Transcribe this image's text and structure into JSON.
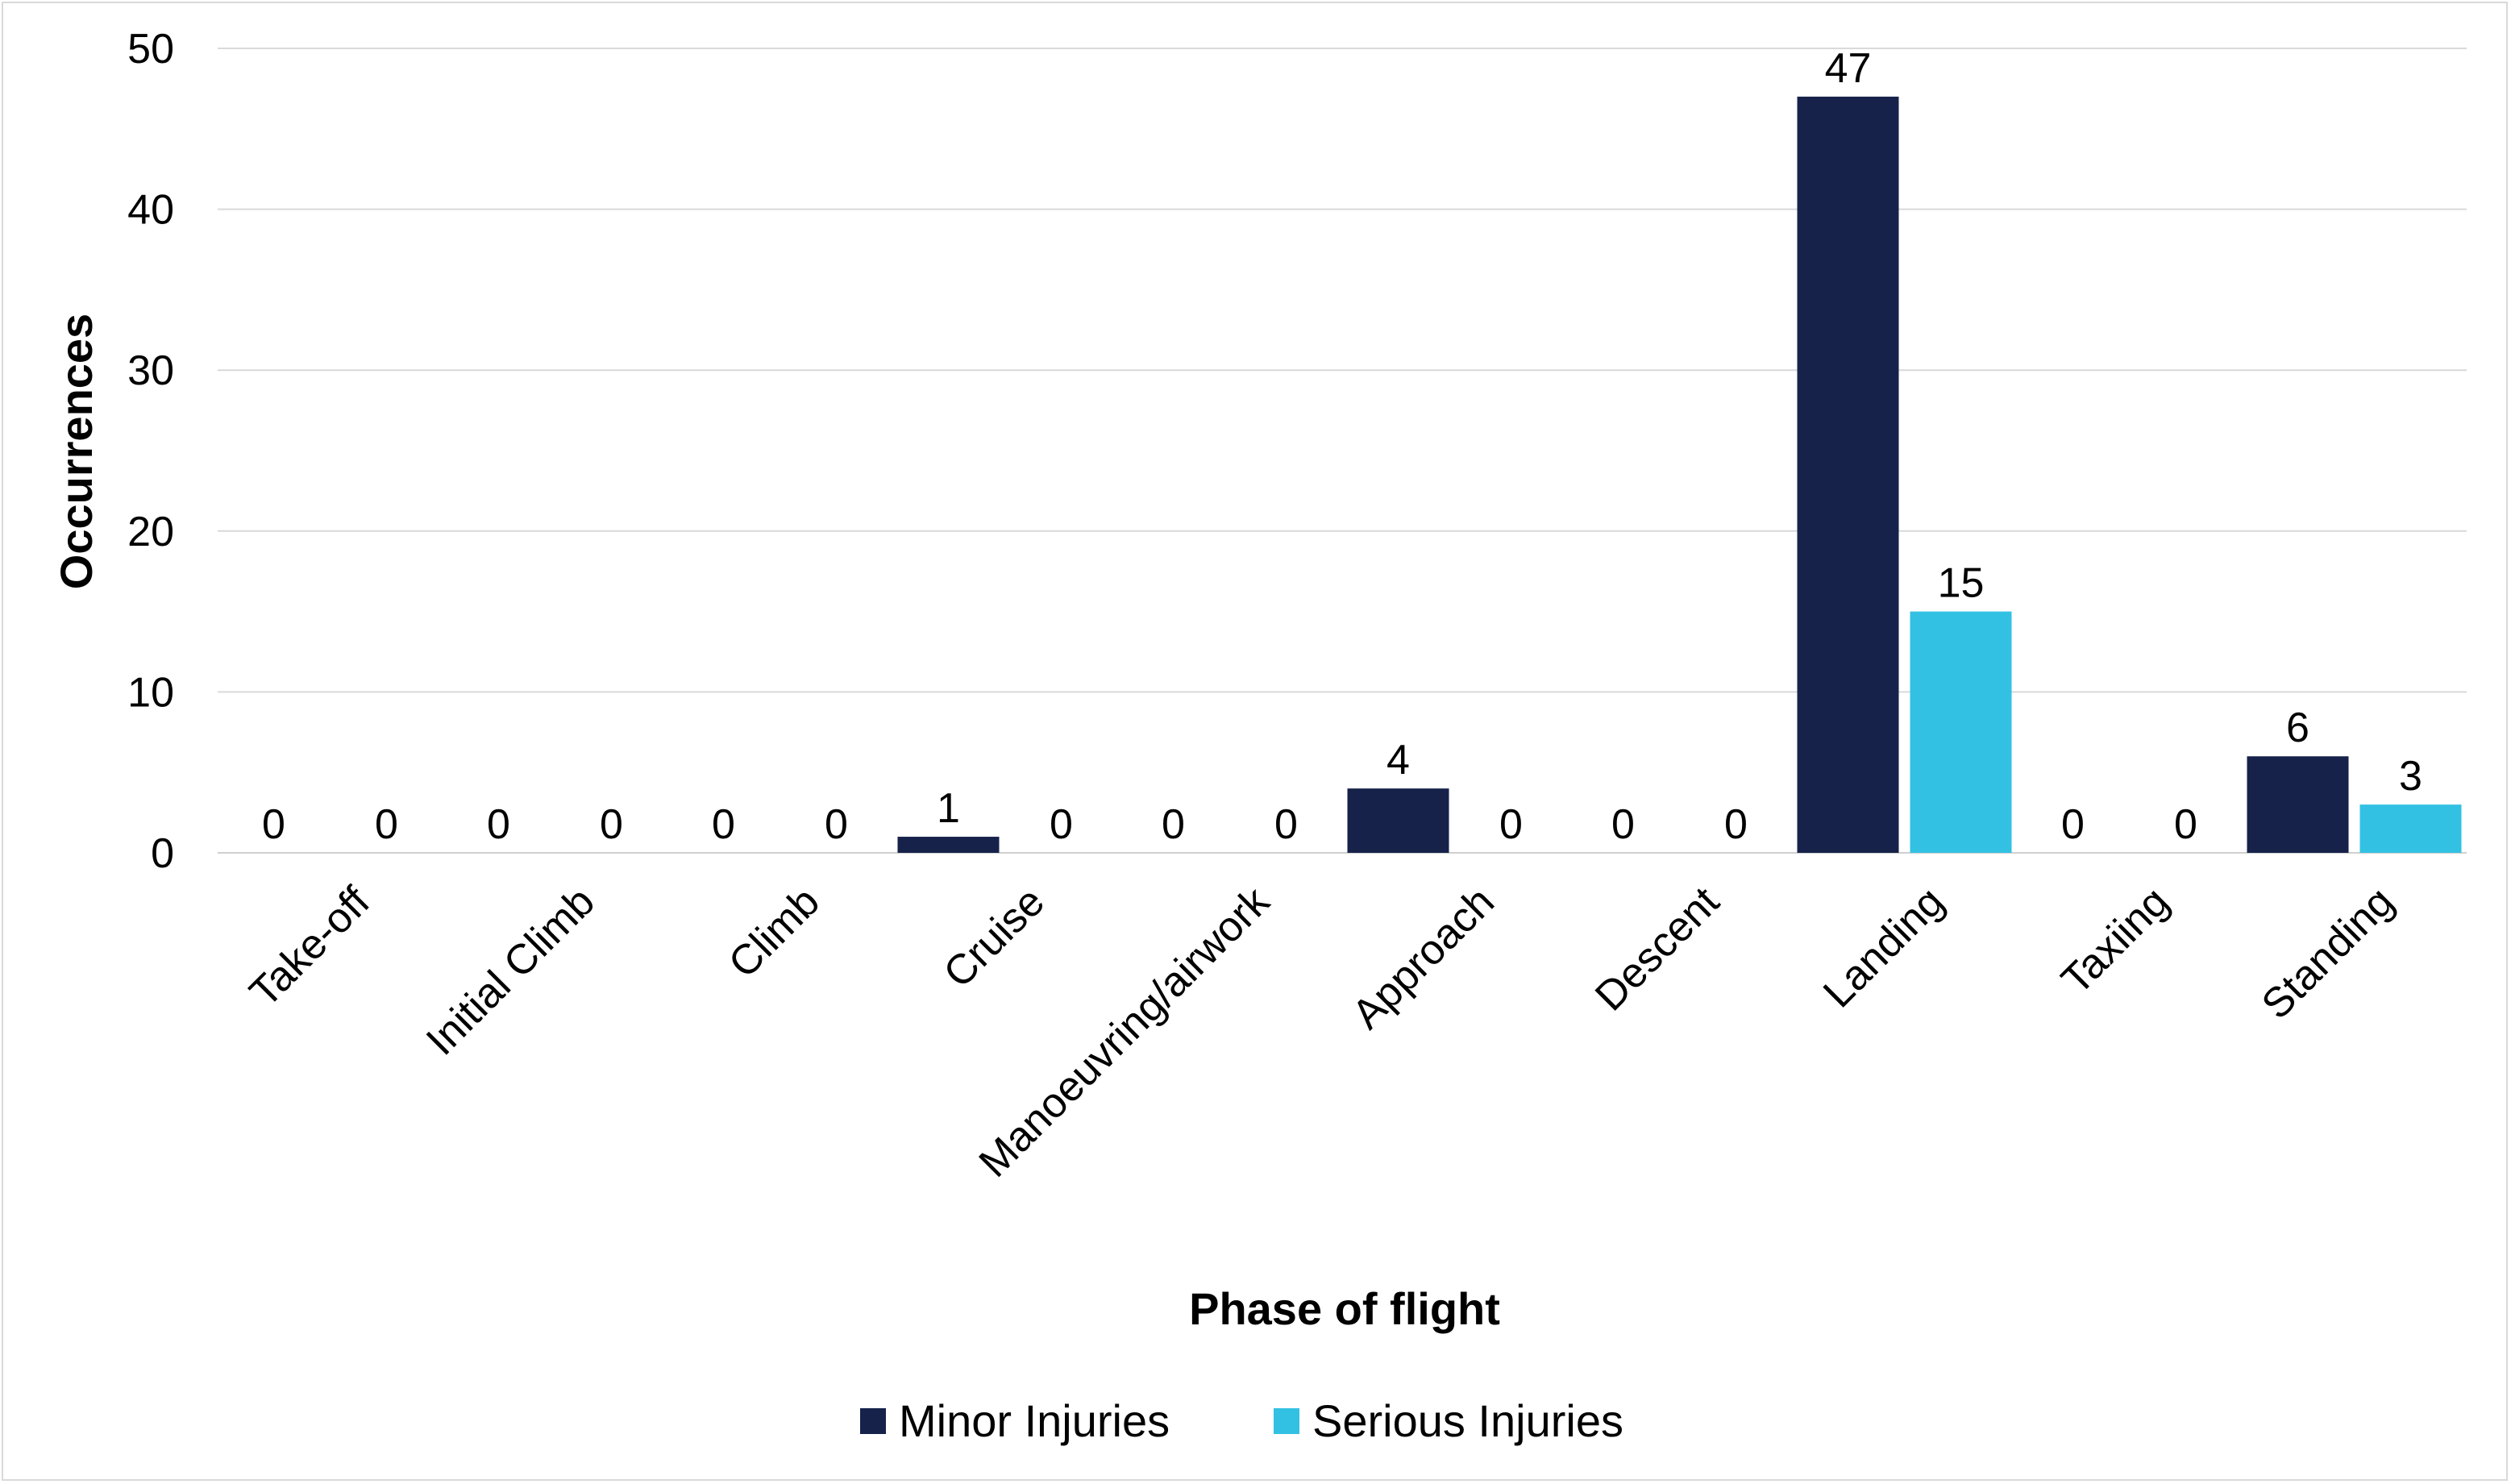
{
  "chart_data": {
    "type": "bar",
    "title": "",
    "xlabel": "Phase of flight",
    "ylabel": "Occurrences",
    "ylim": [
      0,
      50
    ],
    "yticks": [
      0,
      10,
      20,
      30,
      40,
      50
    ],
    "grid": true,
    "legend_position": "bottom",
    "categories": [
      "Take-off",
      "Initial Climb",
      "Climb",
      "Cruise",
      "Manoeuvring/airwork",
      "Approach",
      "Descent",
      "Landing",
      "Taxiing",
      "Standing"
    ],
    "series": [
      {
        "name": "Minor Injuries",
        "color": "#16224a",
        "values": [
          0,
          0,
          0,
          1,
          0,
          4,
          0,
          47,
          0,
          6
        ]
      },
      {
        "name": "Serious Injuries",
        "color": "#33c1e3",
        "values": [
          0,
          0,
          0,
          0,
          0,
          0,
          0,
          15,
          0,
          3
        ]
      }
    ]
  }
}
